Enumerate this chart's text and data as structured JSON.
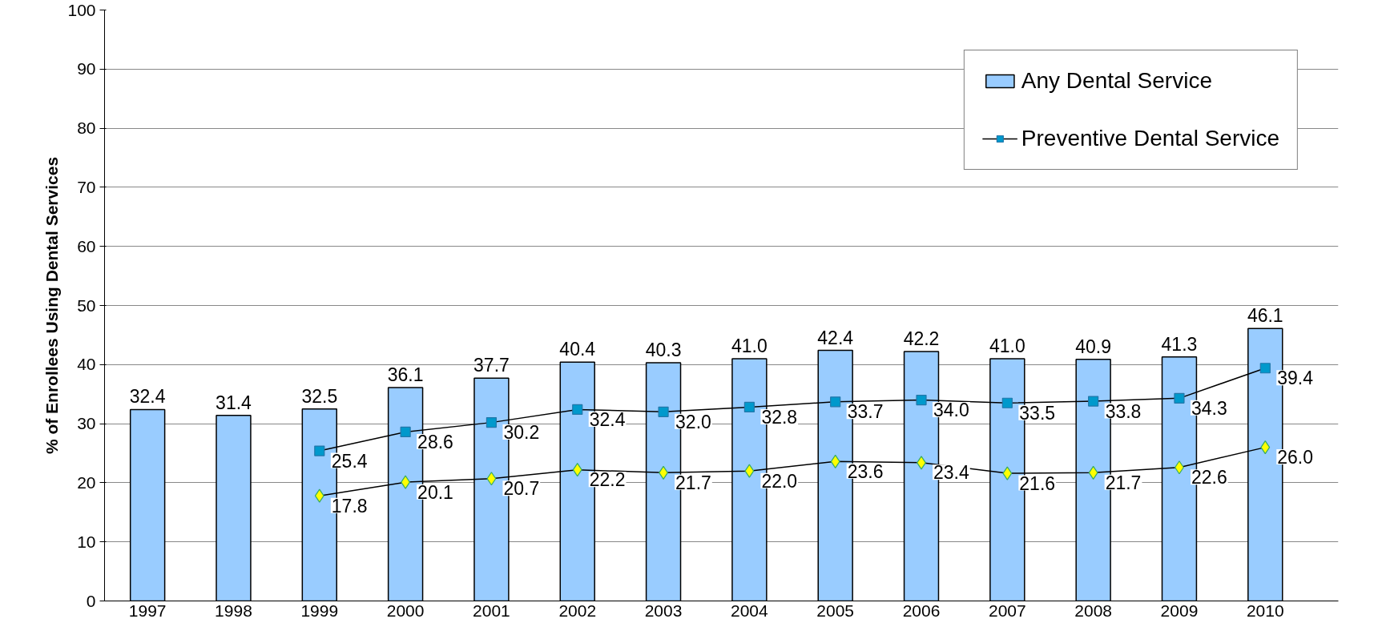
{
  "chart_data": {
    "type": "bar",
    "ylabel": "% of Enrollees Using Dental Services",
    "categories": [
      "1997",
      "1998",
      "1999",
      "2000",
      "2001",
      "2002",
      "2003",
      "2004",
      "2005",
      "2006",
      "2007",
      "2008",
      "2009",
      "2010"
    ],
    "series": [
      {
        "name": "Any Dental Service",
        "color": "#99ccff",
        "values": [
          32.4,
          31.4,
          32.5,
          36.1,
          37.7,
          40.4,
          40.3,
          41.0,
          42.4,
          42.2,
          41.0,
          40.9,
          41.3,
          46.1
        ],
        "value_labels": [
          "32.4",
          "31.4",
          "32.5",
          "36.1",
          "37.7",
          "40.4",
          "40.3",
          "41.0",
          "42.4",
          "42.2",
          "41.0",
          "40.9",
          "41.3",
          "46.1"
        ]
      },
      {
        "name": "Preventive Dental Service",
        "type": "line",
        "marker": "square",
        "color": "#0099cc",
        "values": [
          null,
          null,
          25.4,
          28.6,
          30.2,
          32.4,
          32.0,
          32.8,
          33.7,
          34.0,
          33.5,
          33.8,
          34.3,
          39.4
        ],
        "value_labels": [
          null,
          null,
          "25.4",
          "28.6",
          "30.2",
          "32.4",
          "32.0",
          "32.8",
          "33.7",
          "34.0",
          "33.5",
          "33.8",
          "34.3",
          "39.4"
        ]
      },
      {
        "type": "line",
        "marker": "diamond",
        "color": "#ffff00",
        "values": [
          null,
          null,
          17.8,
          20.1,
          20.7,
          22.2,
          21.7,
          22.0,
          23.6,
          23.4,
          21.6,
          21.7,
          22.6,
          26.0
        ],
        "value_labels": [
          null,
          null,
          "17.8",
          "20.1",
          "20.7",
          "22.2",
          "21.7",
          "22.0",
          "23.6",
          "23.4",
          "21.6",
          "21.7",
          "22.6",
          "26.0"
        ]
      }
    ],
    "ylim": [
      0,
      100
    ],
    "yticks": [
      0,
      10,
      20,
      30,
      40,
      50,
      60,
      70,
      80,
      90,
      100
    ],
    "grid": "y",
    "legend": "top right"
  }
}
